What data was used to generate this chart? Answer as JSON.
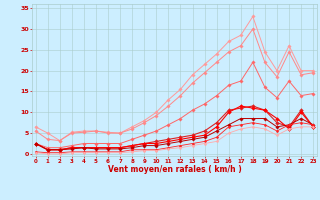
{
  "x": [
    0,
    1,
    2,
    3,
    4,
    5,
    6,
    7,
    8,
    9,
    10,
    11,
    12,
    13,
    14,
    15,
    16,
    17,
    18,
    19,
    20,
    21,
    22,
    23
  ],
  "series": [
    {
      "color": "#ff9999",
      "linewidth": 0.7,
      "marker": "D",
      "markersize": 1.8,
      "y": [
        6.5,
        5.0,
        3.2,
        5.2,
        5.5,
        5.5,
        5.2,
        5.0,
        6.5,
        8.0,
        10.0,
        13.0,
        15.5,
        19.0,
        21.5,
        24.0,
        27.0,
        28.5,
        33.0,
        24.5,
        20.0,
        26.0,
        20.0,
        20.0
      ]
    },
    {
      "color": "#ff8888",
      "linewidth": 0.7,
      "marker": "D",
      "markersize": 1.8,
      "y": [
        5.5,
        3.5,
        3.2,
        5.0,
        5.2,
        5.5,
        5.0,
        5.0,
        6.0,
        7.5,
        9.2,
        11.5,
        14.0,
        17.0,
        19.5,
        22.0,
        24.5,
        26.0,
        30.0,
        22.0,
        18.5,
        24.5,
        19.0,
        19.5
      ]
    },
    {
      "color": "#ff6666",
      "linewidth": 0.7,
      "marker": "D",
      "markersize": 1.8,
      "y": [
        2.5,
        1.5,
        1.5,
        2.0,
        2.5,
        2.5,
        2.5,
        2.5,
        3.5,
        4.5,
        5.5,
        7.0,
        8.5,
        10.5,
        12.0,
        14.0,
        16.5,
        17.5,
        22.0,
        16.0,
        13.5,
        17.5,
        14.0,
        14.5
      ]
    },
    {
      "color": "#dd2222",
      "linewidth": 0.8,
      "marker": "D",
      "markersize": 2.0,
      "y": [
        2.5,
        1.0,
        1.0,
        1.5,
        1.5,
        1.5,
        1.5,
        1.5,
        2.0,
        2.5,
        3.0,
        3.5,
        4.0,
        4.5,
        5.5,
        7.5,
        10.5,
        11.0,
        11.5,
        10.5,
        7.5,
        6.5,
        10.5,
        6.5
      ]
    },
    {
      "color": "#ff0000",
      "linewidth": 0.8,
      "marker": "D",
      "markersize": 2.0,
      "y": [
        2.5,
        1.0,
        1.0,
        1.5,
        1.5,
        1.5,
        1.5,
        1.5,
        2.0,
        2.5,
        2.5,
        3.0,
        3.5,
        4.0,
        4.5,
        6.5,
        10.0,
        11.5,
        11.0,
        10.5,
        8.5,
        6.0,
        10.0,
        6.5
      ]
    },
    {
      "color": "#bb0000",
      "linewidth": 0.7,
      "marker": "D",
      "markersize": 1.8,
      "y": [
        2.5,
        1.0,
        1.0,
        1.2,
        1.5,
        1.2,
        1.2,
        1.2,
        1.5,
        2.0,
        2.0,
        2.5,
        3.0,
        3.5,
        4.0,
        5.5,
        7.0,
        8.5,
        8.5,
        8.5,
        6.5,
        7.0,
        8.5,
        7.0
      ]
    },
    {
      "color": "#ff2222",
      "linewidth": 0.6,
      "marker": "D",
      "markersize": 1.5,
      "y": [
        0.5,
        0.3,
        0.3,
        0.5,
        0.5,
        0.5,
        0.5,
        0.5,
        1.0,
        1.0,
        1.0,
        1.5,
        2.0,
        2.5,
        3.0,
        4.0,
        6.5,
        7.0,
        7.5,
        7.0,
        5.5,
        7.0,
        7.5,
        7.0
      ]
    },
    {
      "color": "#ffaaaa",
      "linewidth": 0.6,
      "marker": "D",
      "markersize": 1.5,
      "y": [
        0.3,
        0.0,
        0.0,
        0.3,
        0.3,
        0.3,
        0.3,
        0.3,
        0.5,
        0.8,
        0.8,
        1.2,
        1.5,
        2.0,
        2.5,
        3.0,
        5.0,
        6.0,
        6.5,
        6.0,
        4.5,
        6.0,
        6.5,
        6.5
      ]
    }
  ],
  "xlim": [
    -0.3,
    23.3
  ],
  "ylim": [
    -0.5,
    36
  ],
  "yticks": [
    0,
    5,
    10,
    15,
    20,
    25,
    30,
    35
  ],
  "xticks": [
    0,
    1,
    2,
    3,
    4,
    5,
    6,
    7,
    8,
    9,
    10,
    11,
    12,
    13,
    14,
    15,
    16,
    17,
    18,
    19,
    20,
    21,
    22,
    23
  ],
  "xlabel": "Vent moyen/en rafales ( km/h )",
  "background_color": "#cceeff",
  "grid_color": "#aacccc",
  "tick_color": "#cc0000",
  "label_color": "#cc0000",
  "figsize": [
    3.2,
    2.0
  ],
  "dpi": 100
}
